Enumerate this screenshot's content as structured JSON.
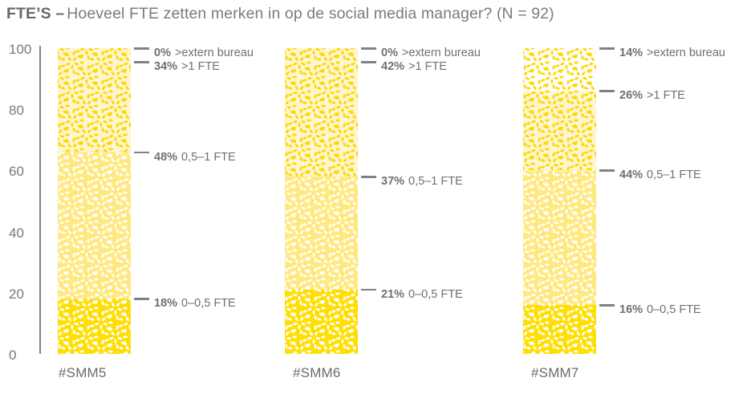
{
  "chart_data": {
    "type": "bar",
    "stacked": true,
    "title_prefix": "FTE’S –",
    "title_text": "Hoeveel FTE zetten merken in op de social media manager? (N = 92)",
    "categories": [
      "#SMM5",
      "#SMM6",
      "#SMM7"
    ],
    "series": [
      {
        "name": "0–0,5 FTE",
        "values": [
          18,
          21,
          16
        ],
        "bg": "#FFDE00",
        "seed": "#FFFFFF"
      },
      {
        "name": "0,5–1 FTE",
        "values": [
          48,
          37,
          44
        ],
        "bg": "#FFE87D",
        "seed": "#FFFFFF"
      },
      {
        "name": ">1 FTE",
        "values": [
          34,
          42,
          26
        ],
        "bg": "#FDF6D1",
        "seed": "#FFD800"
      },
      {
        "name": ">extern bureau",
        "values": [
          0,
          0,
          14
        ],
        "bg": "#FFFFFF",
        "seed": "#FFD800"
      }
    ],
    "y_axis": {
      "min": 0,
      "max": 100,
      "ticks": [
        0,
        20,
        40,
        60,
        80,
        100
      ]
    },
    "annotation_format": "{value}% {name}",
    "grid": false,
    "legend_position": "none",
    "colors": {
      "annotation_text": "#6E7073",
      "axis": "#808285",
      "title_bold": "#67686B",
      "title_regular": "#7A7B7F"
    }
  }
}
